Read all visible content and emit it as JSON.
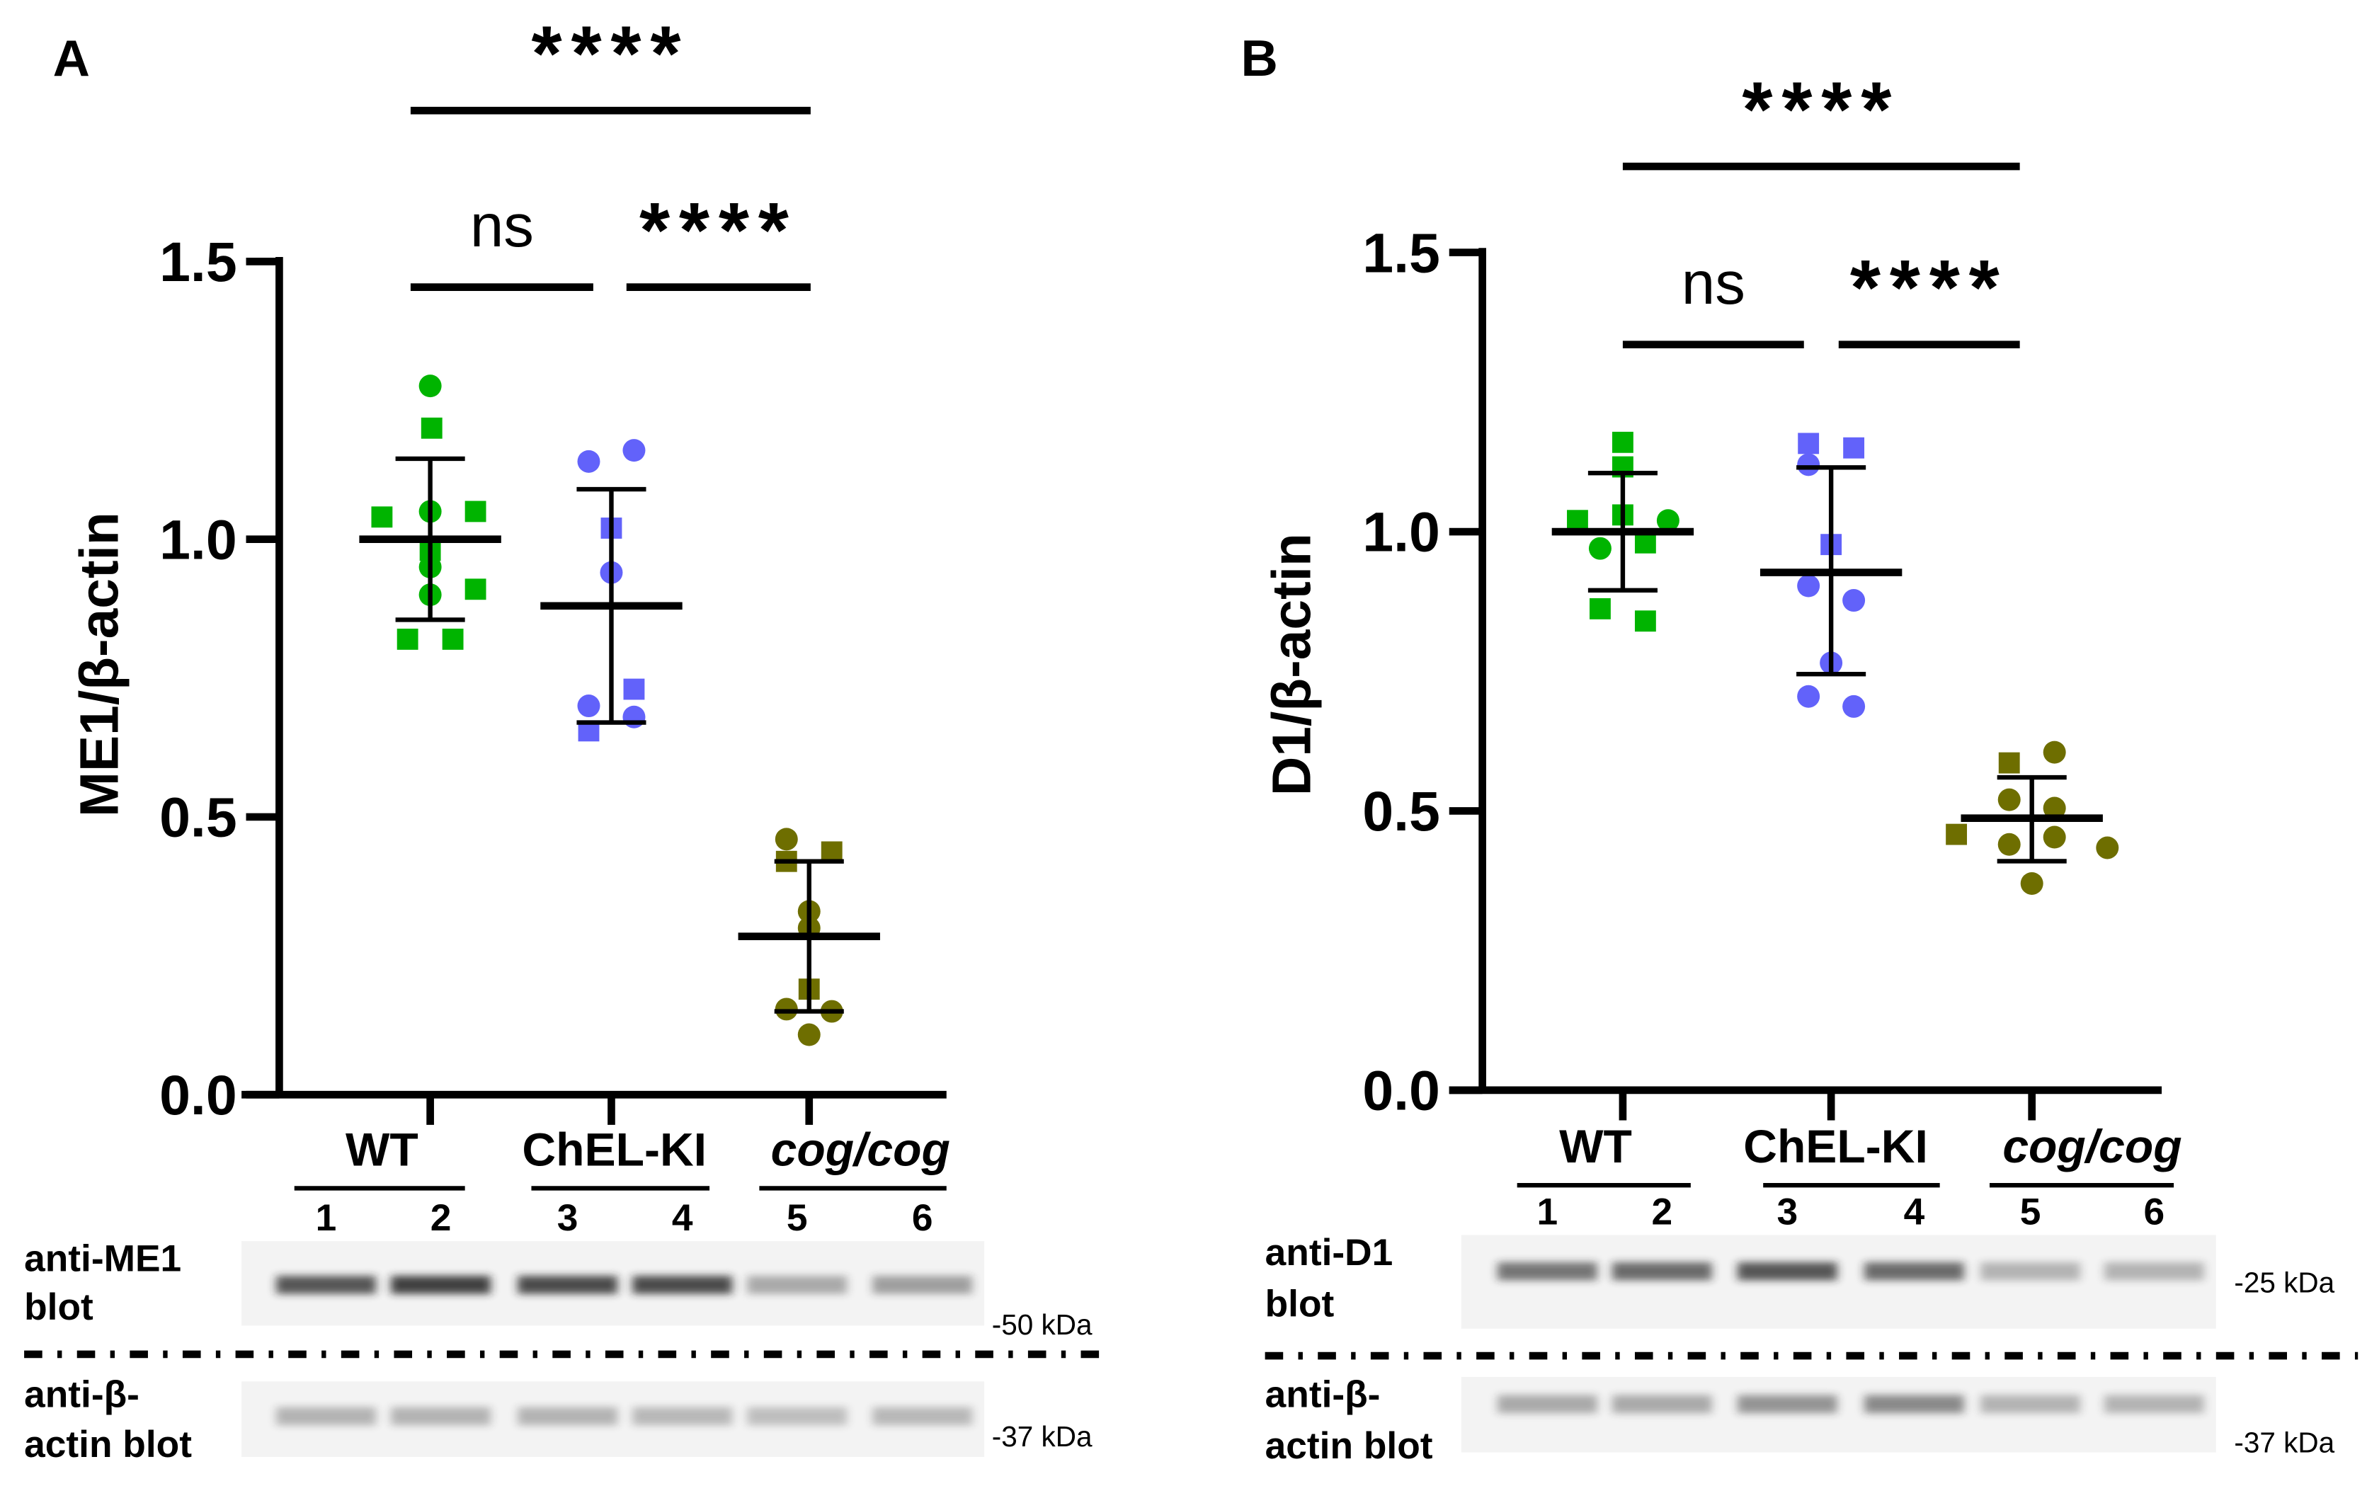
{
  "colors": {
    "WT": "#00b400",
    "ChEL-KI": "#6262fa",
    "cog/cog": "#6e6e00"
  },
  "chart_data": [
    {
      "panel": "A",
      "type": "scatter",
      "ylabel": "ME1/β-actin",
      "ylim": [
        0,
        1.5
      ],
      "yticks": [
        "0.0",
        "0.5",
        "1.0",
        "1.5"
      ],
      "categories": [
        "WT",
        "ChEL-KI",
        "cog/cog"
      ],
      "groups": [
        {
          "name": "WT",
          "mean": 1.0,
          "sd_low": 0.855,
          "sd_high": 1.145,
          "points": [
            {
              "v": 1.276,
              "s": "circle"
            },
            {
              "v": 1.2,
              "s": "square"
            },
            {
              "v": 1.04,
              "s": "square"
            },
            {
              "v": 1.05,
              "s": "circle"
            },
            {
              "v": 1.05,
              "s": "square"
            },
            {
              "v": 0.98,
              "s": "square"
            },
            {
              "v": 0.95,
              "s": "circle"
            },
            {
              "v": 0.9,
              "s": "circle"
            },
            {
              "v": 0.91,
              "s": "square"
            },
            {
              "v": 0.82,
              "s": "square"
            },
            {
              "v": 0.82,
              "s": "square"
            }
          ]
        },
        {
          "name": "ChEL-KI",
          "mean": 0.88,
          "sd_low": 0.67,
          "sd_high": 1.09,
          "points": [
            {
              "v": 1.14,
              "s": "circle"
            },
            {
              "v": 1.16,
              "s": "circle"
            },
            {
              "v": 1.02,
              "s": "square"
            },
            {
              "v": 0.94,
              "s": "circle"
            },
            {
              "v": 0.73,
              "s": "square"
            },
            {
              "v": 0.7,
              "s": "circle"
            },
            {
              "v": 0.68,
              "s": "circle"
            },
            {
              "v": 0.655,
              "s": "square"
            }
          ]
        },
        {
          "name": "cog/cog",
          "mean": 0.285,
          "sd_low": 0.15,
          "sd_high": 0.42,
          "points": [
            {
              "v": 0.46,
              "s": "circle"
            },
            {
              "v": 0.42,
              "s": "square"
            },
            {
              "v": 0.437,
              "s": "square"
            },
            {
              "v": 0.33,
              "s": "circle"
            },
            {
              "v": 0.3,
              "s": "circle"
            },
            {
              "v": 0.19,
              "s": "square"
            },
            {
              "v": 0.154,
              "s": "circle"
            },
            {
              "v": 0.15,
              "s": "circle"
            },
            {
              "v": 0.108,
              "s": "circle"
            }
          ]
        }
      ],
      "significance": [
        {
          "from": "WT",
          "to": "cog/cog",
          "label": "****"
        },
        {
          "from": "WT",
          "to": "ChEL-KI",
          "label": "ns"
        },
        {
          "from": "ChEL-KI",
          "to": "cog/cog",
          "label": "****"
        }
      ],
      "blot": {
        "lanes": [
          "1",
          "2",
          "3",
          "4",
          "5",
          "6"
        ],
        "top_label": [
          "anti-ME1",
          "blot"
        ],
        "top_marker": "-50 kDa",
        "top_intensity": [
          0.75,
          0.85,
          0.8,
          0.8,
          0.35,
          0.4
        ],
        "bottom_label": [
          "anti-β-",
          "actin blot"
        ],
        "bottom_marker": "-37 kDa",
        "bottom_intensity": [
          0.3,
          0.3,
          0.3,
          0.28,
          0.25,
          0.28
        ]
      }
    },
    {
      "panel": "B",
      "type": "scatter",
      "ylabel": "D1/β-actin",
      "ylim": [
        0,
        1.5
      ],
      "yticks": [
        "0.0",
        "0.5",
        "1.0",
        "1.5"
      ],
      "categories": [
        "WT",
        "ChEL-KI",
        "cog/cog"
      ],
      "groups": [
        {
          "name": "WT",
          "mean": 1.0,
          "sd_low": 0.895,
          "sd_high": 1.105,
          "points": [
            {
              "v": 1.16,
              "s": "square"
            },
            {
              "v": 1.116,
              "s": "square"
            },
            {
              "v": 1.02,
              "s": "square"
            },
            {
              "v": 1.03,
              "s": "square"
            },
            {
              "v": 1.02,
              "s": "circle"
            },
            {
              "v": 0.97,
              "s": "circle"
            },
            {
              "v": 0.98,
              "s": "square"
            },
            {
              "v": 0.862,
              "s": "square"
            },
            {
              "v": 0.84,
              "s": "square"
            }
          ]
        },
        {
          "name": "ChEL-KI",
          "mean": 0.927,
          "sd_low": 0.745,
          "sd_high": 1.115,
          "points": [
            {
              "v": 1.158,
              "s": "square"
            },
            {
              "v": 1.15,
              "s": "square"
            },
            {
              "v": 1.12,
              "s": "circle"
            },
            {
              "v": 0.977,
              "s": "square"
            },
            {
              "v": 0.903,
              "s": "circle"
            },
            {
              "v": 0.877,
              "s": "circle"
            },
            {
              "v": 0.765,
              "s": "circle"
            },
            {
              "v": 0.705,
              "s": "circle"
            },
            {
              "v": 0.687,
              "s": "circle"
            }
          ]
        },
        {
          "name": "cog/cog",
          "mean": 0.487,
          "sd_low": 0.41,
          "sd_high": 0.56,
          "points": [
            {
              "v": 0.605,
              "s": "circle"
            },
            {
              "v": 0.586,
              "s": "square"
            },
            {
              "v": 0.52,
              "s": "circle"
            },
            {
              "v": 0.505,
              "s": "circle"
            },
            {
              "v": 0.458,
              "s": "square"
            },
            {
              "v": 0.44,
              "s": "circle"
            },
            {
              "v": 0.453,
              "s": "circle"
            },
            {
              "v": 0.434,
              "s": "circle"
            },
            {
              "v": 0.37,
              "s": "circle"
            }
          ]
        }
      ],
      "significance": [
        {
          "from": "WT",
          "to": "cog/cog",
          "label": "****"
        },
        {
          "from": "WT",
          "to": "ChEL-KI",
          "label": "ns"
        },
        {
          "from": "ChEL-KI",
          "to": "cog/cog",
          "label": "****"
        }
      ],
      "blot": {
        "lanes": [
          "1",
          "2",
          "3",
          "4",
          "5",
          "6"
        ],
        "top_label": [
          "anti-D1",
          "blot"
        ],
        "top_marker": "-25 kDa",
        "top_intensity": [
          0.6,
          0.65,
          0.75,
          0.65,
          0.3,
          0.3
        ],
        "bottom_label": [
          "anti-β-",
          "actin blot"
        ],
        "bottom_marker": "-37 kDa",
        "bottom_intensity": [
          0.35,
          0.35,
          0.45,
          0.5,
          0.3,
          0.3
        ]
      }
    }
  ]
}
